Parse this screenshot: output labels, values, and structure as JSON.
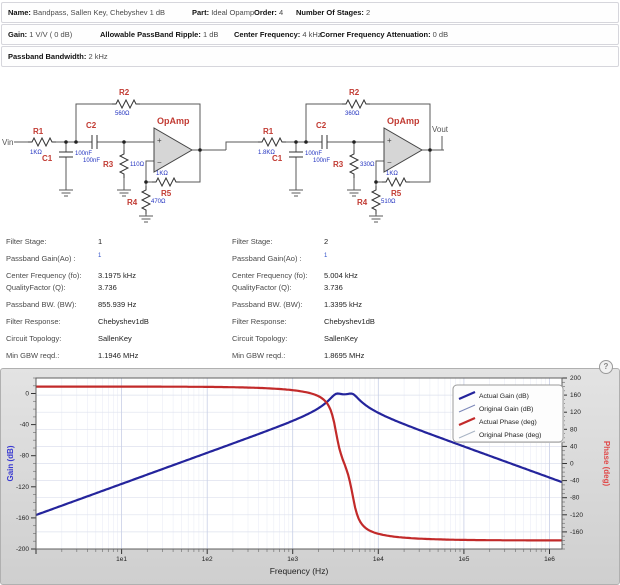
{
  "header": {
    "row1": [
      {
        "label": "Name:",
        "value": "Bandpass, Sallen Key, Chebyshev 1 dB"
      },
      {
        "label": "Part:",
        "value": "Ideal Opamp"
      },
      {
        "label": "Order:",
        "value": "4"
      },
      {
        "label": "Number Of Stages:",
        "value": "2"
      }
    ],
    "row2": [
      {
        "label": "Gain:",
        "value": "1 V/V ( 0 dB)"
      },
      {
        "label": "Allowable PassBand Ripple:",
        "value": "1 dB"
      },
      {
        "label": "Center Frequency:",
        "value": "4 kHz"
      },
      {
        "label": "Corner Frequency Attenuation:",
        "value": "0 dB"
      }
    ],
    "row3": [
      {
        "label": "Passband Bandwidth:",
        "value": "2 kHz"
      }
    ]
  },
  "circuit": {
    "vin_label": "Vin",
    "vout_label": "Vout",
    "plus": "+",
    "minus": "−",
    "stage1": {
      "opamp_label": "OpAmp",
      "r1": {
        "name": "R1",
        "value": "1KΩ"
      },
      "r2": {
        "name": "R2",
        "value": "560Ω"
      },
      "r3": {
        "name": "R3",
        "value": "110Ω"
      },
      "r4": {
        "name": "R4",
        "value": "470Ω"
      },
      "r5": {
        "name": "R5",
        "value": "1KΩ"
      },
      "c1": {
        "name": "C1",
        "value": "100nF"
      },
      "c2": {
        "name": "C2",
        "value": "100nF"
      }
    },
    "stage2": {
      "opamp_label": "OpAmp",
      "r1": {
        "name": "R1",
        "value": "1.8KΩ"
      },
      "r2": {
        "name": "R2",
        "value": "360Ω"
      },
      "r3": {
        "name": "R3",
        "value": "330Ω"
      },
      "r4": {
        "name": "R4",
        "value": "510Ω"
      },
      "r5": {
        "name": "R5",
        "value": "1KΩ"
      },
      "c1": {
        "name": "C1",
        "value": "100nF"
      },
      "c2": {
        "name": "C2",
        "value": "100nF"
      }
    }
  },
  "stages": [
    {
      "rows": [
        [
          "Filter Stage:",
          "1"
        ],
        [
          "Passband Gain(Ao) :",
          "1"
        ],
        [
          "Center Frequency (fo):",
          "3.1975 kHz"
        ],
        [
          "QualityFactor (Q):",
          "3.736"
        ],
        [
          "Passband BW. (BW):",
          "855.939 Hz"
        ],
        [
          "Filter Response:",
          "Chebyshev1dB"
        ],
        [
          "Circuit Topology:",
          "SallenKey"
        ],
        [
          "Min GBW reqd.:",
          "1.1946 MHz"
        ]
      ]
    },
    {
      "rows": [
        [
          "Filter Stage:",
          "2"
        ],
        [
          "Passband Gain(Ao) :",
          "1"
        ],
        [
          "Center Frequency (fo):",
          "5.004 kHz"
        ],
        [
          "QualityFactor (Q):",
          "3.736"
        ],
        [
          "Passband BW. (BW):",
          "1.3395 kHz"
        ],
        [
          "Filter Response:",
          "Chebyshev1dB"
        ],
        [
          "Circuit Topology:",
          "SallenKey"
        ],
        [
          "Min GBW reqd.:",
          "1.8695 MHz"
        ]
      ]
    }
  ],
  "chart_data": {
    "type": "line",
    "xlabel": "Frequency (Hz)",
    "grid": true,
    "legend_position": "top-right",
    "help_glyph": "?",
    "x_axis": {
      "scale": "log",
      "min": 1,
      "max": 1400000,
      "ticks": [
        {
          "label": "1e1",
          "value": 10
        },
        {
          "label": "1e2",
          "value": 100
        },
        {
          "label": "1e3",
          "value": 1000
        },
        {
          "label": "1e4",
          "value": 10000
        },
        {
          "label": "1e5",
          "value": 100000
        },
        {
          "label": "1e6",
          "value": 1000000
        }
      ]
    },
    "gain_axis": {
      "label": "Gain (dB)",
      "color": "#3b3bd1",
      "min": -200,
      "max": 20,
      "ticks": [
        0,
        -40,
        -80,
        -120,
        -160,
        -200
      ]
    },
    "phase_axis": {
      "label": "Phase (deg)",
      "color": "#e04b4b",
      "min": -200,
      "max": 200,
      "ticks": [
        200,
        160,
        120,
        80,
        40,
        0,
        -40,
        -80,
        -120,
        -160
      ]
    },
    "series": [
      {
        "name": "Actual Gain (dB)",
        "axis": "gain",
        "color": "#24249c",
        "width": 2.2,
        "model": {
          "stages": [
            {
              "f0": 3197.5,
              "q": 3.736
            },
            {
              "f0": 5004,
              "q": 3.736
            }
          ],
          "peak_db": 0
        },
        "points": [
          [
            1,
            -155.6
          ],
          [
            10,
            -115.6
          ],
          [
            100,
            -75.6
          ],
          [
            1000,
            -34.5
          ],
          [
            2000,
            -18.2
          ],
          [
            3000,
            -1.9
          ],
          [
            3197.5,
            0
          ],
          [
            4000,
            -0.6
          ],
          [
            5004,
            0
          ],
          [
            6000,
            -7.5
          ],
          [
            10000,
            -24.2
          ],
          [
            31600,
            -47.2
          ],
          [
            100000,
            -67.4
          ],
          [
            1000000,
            -107.5
          ]
        ]
      },
      {
        "name": "Original Gain (dB)",
        "axis": "gain",
        "color": "#7a86b8",
        "width": 1,
        "model": {
          "stages": [
            {
              "f0": 3220,
              "q": 3.9
            },
            {
              "f0": 4975,
              "q": 3.9
            }
          ],
          "peak_db": 0.5
        },
        "points": [
          [
            1,
            -155.4
          ],
          [
            10,
            -115.4
          ],
          [
            100,
            -75.4
          ],
          [
            1000,
            -34.3
          ],
          [
            3200,
            0.3
          ],
          [
            4000,
            -0.8
          ],
          [
            5000,
            0.3
          ],
          [
            10000,
            -24.4
          ],
          [
            100000,
            -67.5
          ],
          [
            1000000,
            -107.6
          ]
        ]
      },
      {
        "name": "Actual Phase (deg)",
        "axis": "phase",
        "color": "#c22a2a",
        "width": 2.2,
        "model": {
          "stages": [
            {
              "f0": 3197.5,
              "q": 3.736
            },
            {
              "f0": 5004,
              "q": 3.736
            }
          ],
          "peak_db": 0
        },
        "points": [
          [
            1,
            180
          ],
          [
            100,
            179.1
          ],
          [
            1000,
            171.5
          ],
          [
            2000,
            157
          ],
          [
            3000,
            101
          ],
          [
            3197.5,
            74
          ],
          [
            4000,
            0
          ],
          [
            5004,
            -74
          ],
          [
            6000,
            -132
          ],
          [
            10000,
            -163
          ],
          [
            31600,
            -175.5
          ],
          [
            100000,
            -178.6
          ],
          [
            1000000,
            -179.9
          ]
        ]
      },
      {
        "name": "Original Phase (deg)",
        "axis": "phase",
        "color": "#a8b4c4",
        "width": 1,
        "model": {
          "stages": [
            {
              "f0": 3220,
              "q": 3.9
            },
            {
              "f0": 4975,
              "q": 3.9
            }
          ],
          "peak_db": 0
        },
        "points": [
          [
            1,
            180
          ],
          [
            1000,
            171.3
          ],
          [
            3000,
            99
          ],
          [
            4000,
            -1
          ],
          [
            5000,
            -75
          ],
          [
            10000,
            -163.5
          ],
          [
            100000,
            -178.7
          ],
          [
            1000000,
            -179.9
          ]
        ]
      }
    ]
  }
}
